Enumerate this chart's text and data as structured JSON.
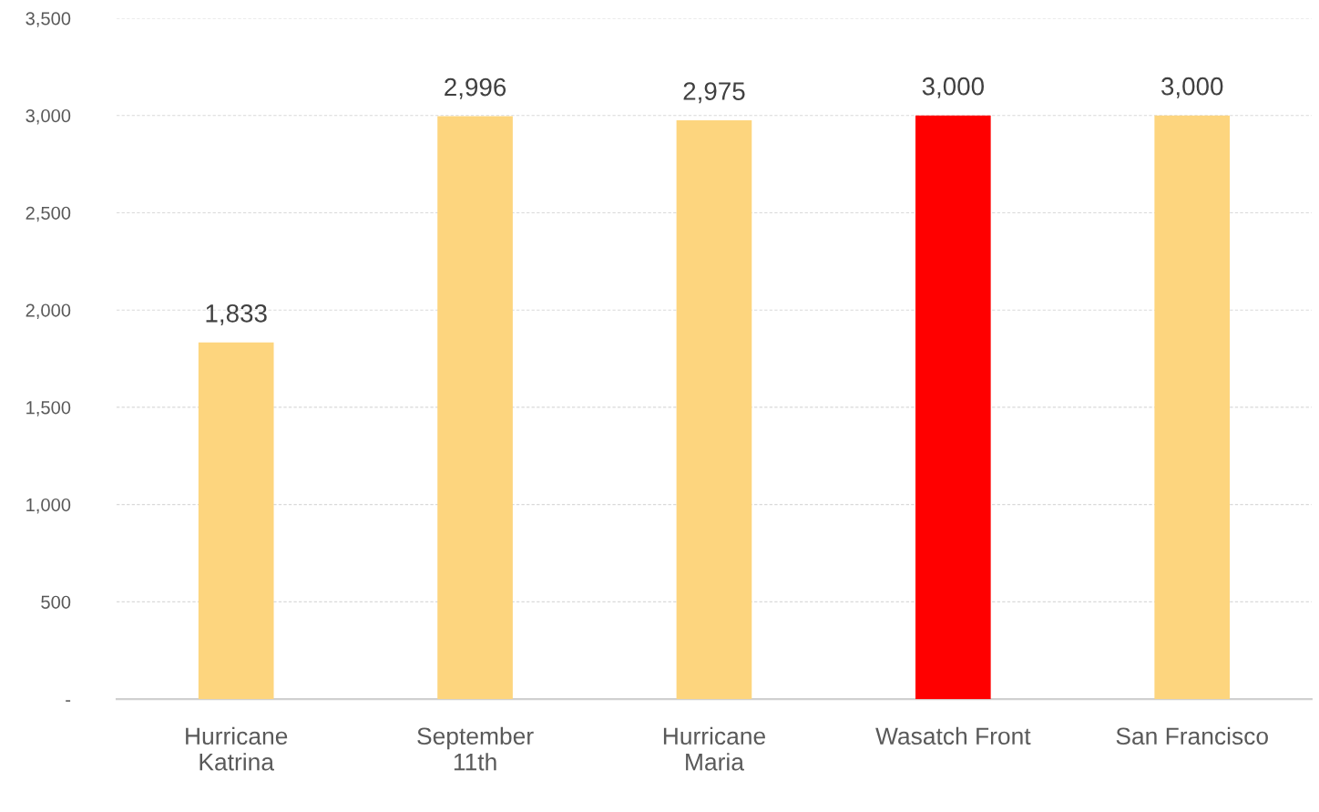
{
  "chart_data": {
    "type": "bar",
    "categories": [
      "Hurricane\nKatrina",
      "September\n11th",
      "Hurricane\nMaria",
      "Wasatch Front",
      "San Francisco"
    ],
    "values": [
      1833,
      2996,
      2975,
      3000,
      3000
    ],
    "colors": [
      "#fdd57e",
      "#fdd57e",
      "#fdd57e",
      "#ff0000",
      "#fdd57e"
    ],
    "value_labels": [
      "1,833",
      "2,996",
      "2,975",
      "3,000",
      "3,000"
    ],
    "ylim": [
      0,
      3500
    ],
    "yticks": [
      {
        "value": 0,
        "label": "-"
      },
      {
        "value": 500,
        "label": "500"
      },
      {
        "value": 1000,
        "label": "1,000"
      },
      {
        "value": 1500,
        "label": "1,500"
      },
      {
        "value": 2000,
        "label": "2,000"
      },
      {
        "value": 2500,
        "label": "2,500"
      },
      {
        "value": 3000,
        "label": "3,000"
      },
      {
        "value": 3500,
        "label": "3,500"
      }
    ],
    "grid": "y",
    "legend": false
  }
}
